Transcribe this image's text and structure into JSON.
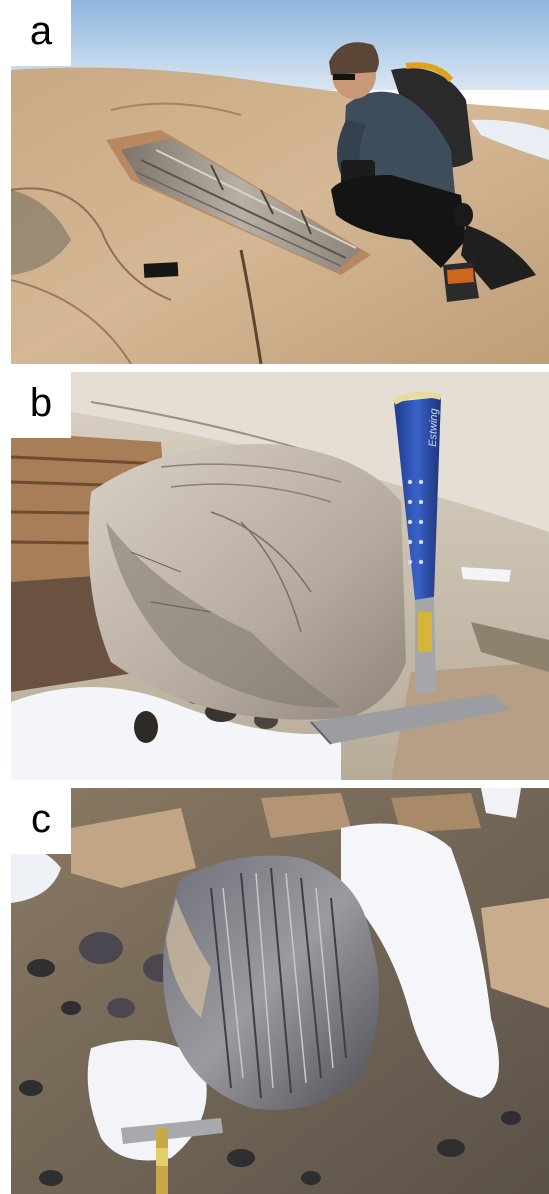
{
  "panels": [
    {
      "label": "a"
    },
    {
      "label": "b"
    },
    {
      "label": "c"
    }
  ],
  "hammer_text": "Estwing"
}
